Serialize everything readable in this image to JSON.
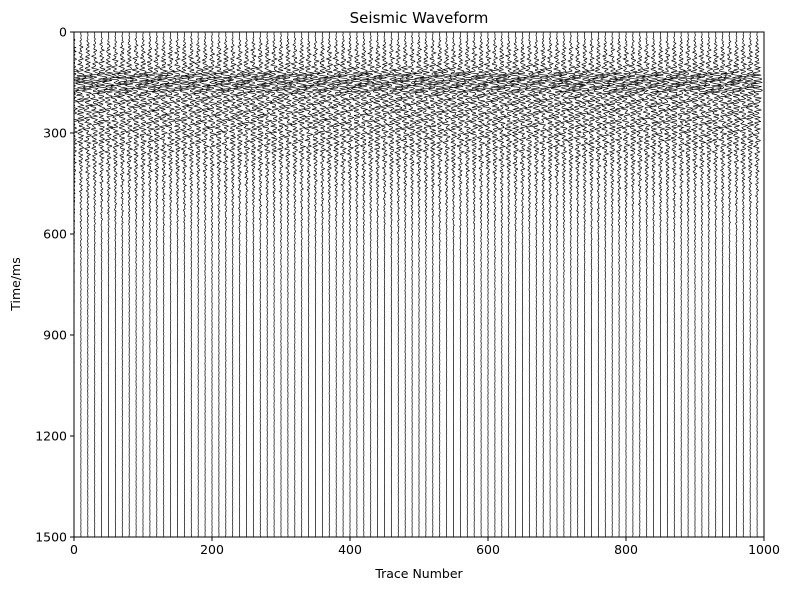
{
  "chart_data": {
    "type": "line",
    "title": "Seismic Waveform",
    "xlabel": "Trace Number",
    "ylabel": "Time/ms",
    "xlim": [
      0,
      1000
    ],
    "ylim": [
      1500,
      0
    ],
    "y_inverted": true,
    "xticks": [
      0,
      200,
      400,
      600,
      800,
      1000
    ],
    "yticks": [
      0,
      300,
      600,
      900,
      1200,
      1500
    ],
    "grid": false,
    "legend": "none",
    "trace_count": 100,
    "trace_spacing": 10,
    "first_trace": 0,
    "trace_color": "#000000",
    "samples_time_ms": [
      0,
      50,
      100,
      130,
      160,
      200,
      250,
      300,
      350,
      400,
      450,
      500,
      600,
      700,
      800,
      900,
      1000,
      1200,
      1500
    ],
    "relative_amplitude": [
      0.0,
      0.4,
      0.6,
      1.0,
      0.95,
      0.85,
      0.8,
      0.7,
      0.55,
      0.4,
      0.3,
      0.22,
      0.12,
      0.08,
      0.06,
      0.05,
      0.05,
      0.04,
      0.03
    ]
  }
}
